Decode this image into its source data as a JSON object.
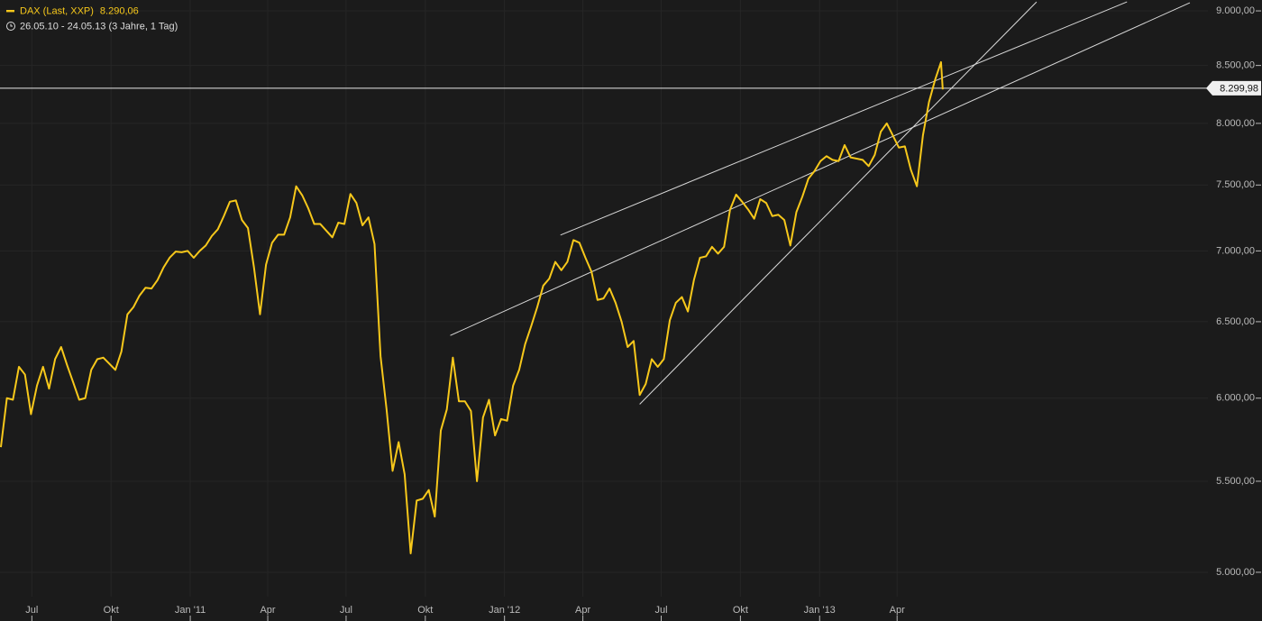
{
  "chart_data": {
    "type": "line",
    "log_scale": true,
    "grid": true,
    "series": [
      {
        "name": "DAX (Last, XXP)",
        "color": "#f7c81b",
        "x": [
          "2010-05-26",
          "2010-06-02",
          "2010-06-09",
          "2010-06-16",
          "2010-06-23",
          "2010-06-30",
          "2010-07-07",
          "2010-07-14",
          "2010-07-21",
          "2010-07-28",
          "2010-08-04",
          "2010-08-11",
          "2010-08-18",
          "2010-08-25",
          "2010-09-01",
          "2010-09-08",
          "2010-09-15",
          "2010-09-22",
          "2010-09-29",
          "2010-10-06",
          "2010-10-13",
          "2010-10-20",
          "2010-10-27",
          "2010-11-03",
          "2010-11-10",
          "2010-11-17",
          "2010-11-24",
          "2010-12-01",
          "2010-12-08",
          "2010-12-15",
          "2010-12-22",
          "2010-12-29",
          "2011-01-05",
          "2011-01-12",
          "2011-01-19",
          "2011-01-26",
          "2011-02-02",
          "2011-02-09",
          "2011-02-16",
          "2011-02-23",
          "2011-03-02",
          "2011-03-09",
          "2011-03-16",
          "2011-03-23",
          "2011-03-30",
          "2011-04-06",
          "2011-04-13",
          "2011-04-20",
          "2011-04-27",
          "2011-05-04",
          "2011-05-11",
          "2011-05-18",
          "2011-05-25",
          "2011-06-01",
          "2011-06-08",
          "2011-06-15",
          "2011-06-22",
          "2011-06-29",
          "2011-07-06",
          "2011-07-13",
          "2011-07-20",
          "2011-07-27",
          "2011-08-03",
          "2011-08-10",
          "2011-08-17",
          "2011-08-24",
          "2011-08-31",
          "2011-09-07",
          "2011-09-14",
          "2011-09-21",
          "2011-09-28",
          "2011-10-05",
          "2011-10-12",
          "2011-10-19",
          "2011-10-26",
          "2011-11-02",
          "2011-11-09",
          "2011-11-16",
          "2011-11-23",
          "2011-11-30",
          "2011-12-07",
          "2011-12-14",
          "2011-12-21",
          "2011-12-28",
          "2012-01-04",
          "2012-01-11",
          "2012-01-18",
          "2012-01-25",
          "2012-02-01",
          "2012-02-08",
          "2012-02-15",
          "2012-02-22",
          "2012-02-29",
          "2012-03-07",
          "2012-03-14",
          "2012-03-21",
          "2012-03-28",
          "2012-04-04",
          "2012-04-11",
          "2012-04-18",
          "2012-04-25",
          "2012-05-02",
          "2012-05-09",
          "2012-05-16",
          "2012-05-23",
          "2012-05-30",
          "2012-06-06",
          "2012-06-13",
          "2012-06-20",
          "2012-06-27",
          "2012-07-04",
          "2012-07-11",
          "2012-07-18",
          "2012-07-25",
          "2012-08-01",
          "2012-08-08",
          "2012-08-15",
          "2012-08-22",
          "2012-08-29",
          "2012-09-05",
          "2012-09-12",
          "2012-09-19",
          "2012-09-26",
          "2012-10-03",
          "2012-10-10",
          "2012-10-17",
          "2012-10-24",
          "2012-10-31",
          "2012-11-07",
          "2012-11-14",
          "2012-11-21",
          "2012-11-28",
          "2012-12-05",
          "2012-12-12",
          "2012-12-19",
          "2012-12-26",
          "2013-01-02",
          "2013-01-09",
          "2013-01-16",
          "2013-01-23",
          "2013-01-30",
          "2013-02-06",
          "2013-02-13",
          "2013-02-20",
          "2013-02-27",
          "2013-03-06",
          "2013-03-13",
          "2013-03-20",
          "2013-03-27",
          "2013-04-03",
          "2013-04-10",
          "2013-04-17",
          "2013-04-24",
          "2013-05-01",
          "2013-05-08",
          "2013-05-15",
          "2013-05-22",
          "2013-05-24"
        ],
        "values": [
          5700,
          6000,
          5990,
          6200,
          6150,
          5900,
          6080,
          6200,
          6060,
          6250,
          6330,
          6210,
          6100,
          5990,
          6000,
          6180,
          6250,
          6260,
          6220,
          6180,
          6300,
          6550,
          6600,
          6680,
          6735,
          6730,
          6790,
          6880,
          6950,
          6995,
          6990,
          7000,
          6950,
          7000,
          7040,
          7110,
          7160,
          7260,
          7370,
          7380,
          7230,
          7170,
          6880,
          6550,
          6900,
          7060,
          7120,
          7120,
          7250,
          7490,
          7420,
          7320,
          7200,
          7200,
          7150,
          7100,
          7210,
          7200,
          7430,
          7360,
          7190,
          7250,
          7050,
          6270,
          5930,
          5560,
          5730,
          5540,
          5100,
          5390,
          5400,
          5450,
          5300,
          5800,
          5930,
          6260,
          5980,
          5980,
          5920,
          5500,
          5880,
          5990,
          5770,
          5870,
          5860,
          6080,
          6180,
          6350,
          6470,
          6600,
          6750,
          6800,
          6920,
          6860,
          6920,
          7080,
          7060,
          6950,
          6850,
          6650,
          6660,
          6730,
          6630,
          6500,
          6330,
          6370,
          6020,
          6090,
          6250,
          6200,
          6250,
          6510,
          6630,
          6670,
          6570,
          6790,
          6950,
          6960,
          7030,
          6980,
          7030,
          7310,
          7425,
          7370,
          7310,
          7240,
          7390,
          7360,
          7260,
          7270,
          7230,
          7040,
          7290,
          7410,
          7550,
          7610,
          7690,
          7730,
          7700,
          7690,
          7820,
          7720,
          7710,
          7700,
          7650,
          7740,
          7930,
          8000,
          7900,
          7800,
          7810,
          7620,
          7490,
          7900,
          8180,
          8370,
          8530,
          8290.06
        ]
      }
    ],
    "last_label": "8.290,06",
    "period": "26.05.10 - 24.05.13 (3 Jahre, 1 Tag)",
    "reference_line": {
      "value": 8299.98,
      "label": "8.299,98"
    },
    "trendlines": [
      {
        "x": [
          "2011-10-30",
          "2014-03-07"
        ],
        "y": [
          6407,
          9077
        ]
      },
      {
        "x": [
          "2012-03-06",
          "2013-12-24"
        ],
        "y": [
          7117,
          9085
        ]
      },
      {
        "x": [
          "2012-06-06",
          "2013-09-10"
        ],
        "y": [
          5962,
          9085
        ]
      }
    ],
    "xlim": [
      "2010-05-25",
      "2014-03-28"
    ],
    "xticks": [
      {
        "value": "2010-07-01",
        "label": "Jul"
      },
      {
        "value": "2010-10-01",
        "label": "Okt"
      },
      {
        "value": "2011-01-01",
        "label": "Jan '11"
      },
      {
        "value": "2011-04-01",
        "label": "Apr"
      },
      {
        "value": "2011-07-01",
        "label": "Jul"
      },
      {
        "value": "2011-10-01",
        "label": "Okt"
      },
      {
        "value": "2012-01-01",
        "label": "Jan '12"
      },
      {
        "value": "2012-04-01",
        "label": "Apr"
      },
      {
        "value": "2012-07-01",
        "label": "Jul"
      },
      {
        "value": "2012-10-01",
        "label": "Okt"
      },
      {
        "value": "2013-01-01",
        "label": "Jan '13"
      },
      {
        "value": "2013-04-01",
        "label": "Apr"
      }
    ],
    "ylim": [
      4874,
      9103
    ],
    "yticks": [
      {
        "value": 9000,
        "label": "9.000,00"
      },
      {
        "value": 8500,
        "label": "8.500,00"
      },
      {
        "value": 8000,
        "label": "8.000,00"
      },
      {
        "value": 7500,
        "label": "7.500,00"
      },
      {
        "value": 7000,
        "label": "7.000,00"
      },
      {
        "value": 6500,
        "label": "6.500,00"
      },
      {
        "value": 6000,
        "label": "6.000,00"
      },
      {
        "value": 5500,
        "label": "5.500,00"
      },
      {
        "value": 5000,
        "label": "5.000,00"
      }
    ]
  }
}
